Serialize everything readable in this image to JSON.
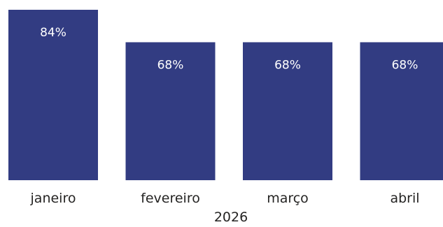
{
  "chart_data": {
    "type": "bar",
    "categories": [
      "janeiro",
      "fevereiro",
      "março",
      "abril"
    ],
    "values": [
      84,
      68,
      68,
      68
    ],
    "value_labels": [
      "84%",
      "68%",
      "68%",
      "68%"
    ],
    "group_label": "2026",
    "title": "",
    "xlabel": "",
    "ylabel": "",
    "ylim": [
      0,
      84
    ],
    "grid": false,
    "legend": "none",
    "bar_color": "#323c82"
  }
}
